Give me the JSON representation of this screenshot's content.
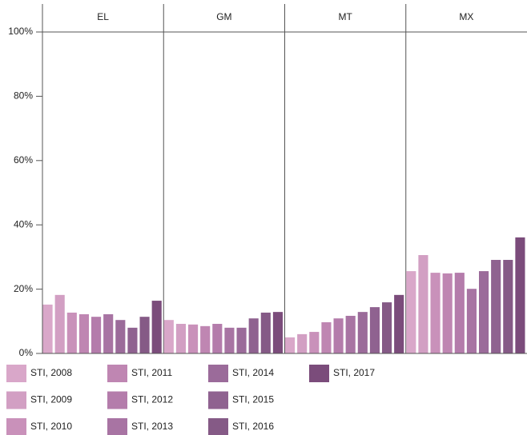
{
  "chart_data": {
    "type": "bar",
    "panels": [
      "EL",
      "GM",
      "MT",
      "MX"
    ],
    "ylim": [
      0,
      100
    ],
    "yticks": [
      {
        "value": 0,
        "label": "0%"
      },
      {
        "value": 20,
        "label": "20%"
      },
      {
        "value": 40,
        "label": "40%"
      },
      {
        "value": 60,
        "label": "60%"
      },
      {
        "value": 80,
        "label": "80%"
      },
      {
        "value": 100,
        "label": "100%"
      }
    ],
    "series": [
      {
        "name": "STI, 2008",
        "color": "#d9a7c9",
        "values": [
          15.2,
          10.4,
          5.0,
          25.6
        ]
      },
      {
        "name": "STI, 2009",
        "color": "#d29fc3",
        "values": [
          18.2,
          9.2,
          6.0,
          30.6
        ]
      },
      {
        "name": "STI, 2010",
        "color": "#c991ba",
        "values": [
          12.7,
          9.0,
          6.7,
          25.1
        ]
      },
      {
        "name": "STI, 2011",
        "color": "#bf86b2",
        "values": [
          12.2,
          8.5,
          9.7,
          24.9
        ]
      },
      {
        "name": "STI, 2012",
        "color": "#b47cab",
        "values": [
          11.4,
          9.2,
          10.9,
          25.1
        ]
      },
      {
        "name": "STI, 2013",
        "color": "#a874a3",
        "values": [
          12.2,
          8.0,
          11.7,
          20.1
        ]
      },
      {
        "name": "STI, 2014",
        "color": "#9b6b9a",
        "values": [
          10.4,
          8.0,
          12.9,
          25.6
        ]
      },
      {
        "name": "STI, 2015",
        "color": "#8f6290",
        "values": [
          8.0,
          10.9,
          14.4,
          29.1
        ]
      },
      {
        "name": "STI, 2016",
        "color": "#855a86",
        "values": [
          11.4,
          12.7,
          15.9,
          29.1
        ]
      },
      {
        "name": "STI, 2017",
        "color": "#7b4c7b",
        "values": [
          16.4,
          12.9,
          18.2,
          36.1
        ]
      }
    ]
  }
}
